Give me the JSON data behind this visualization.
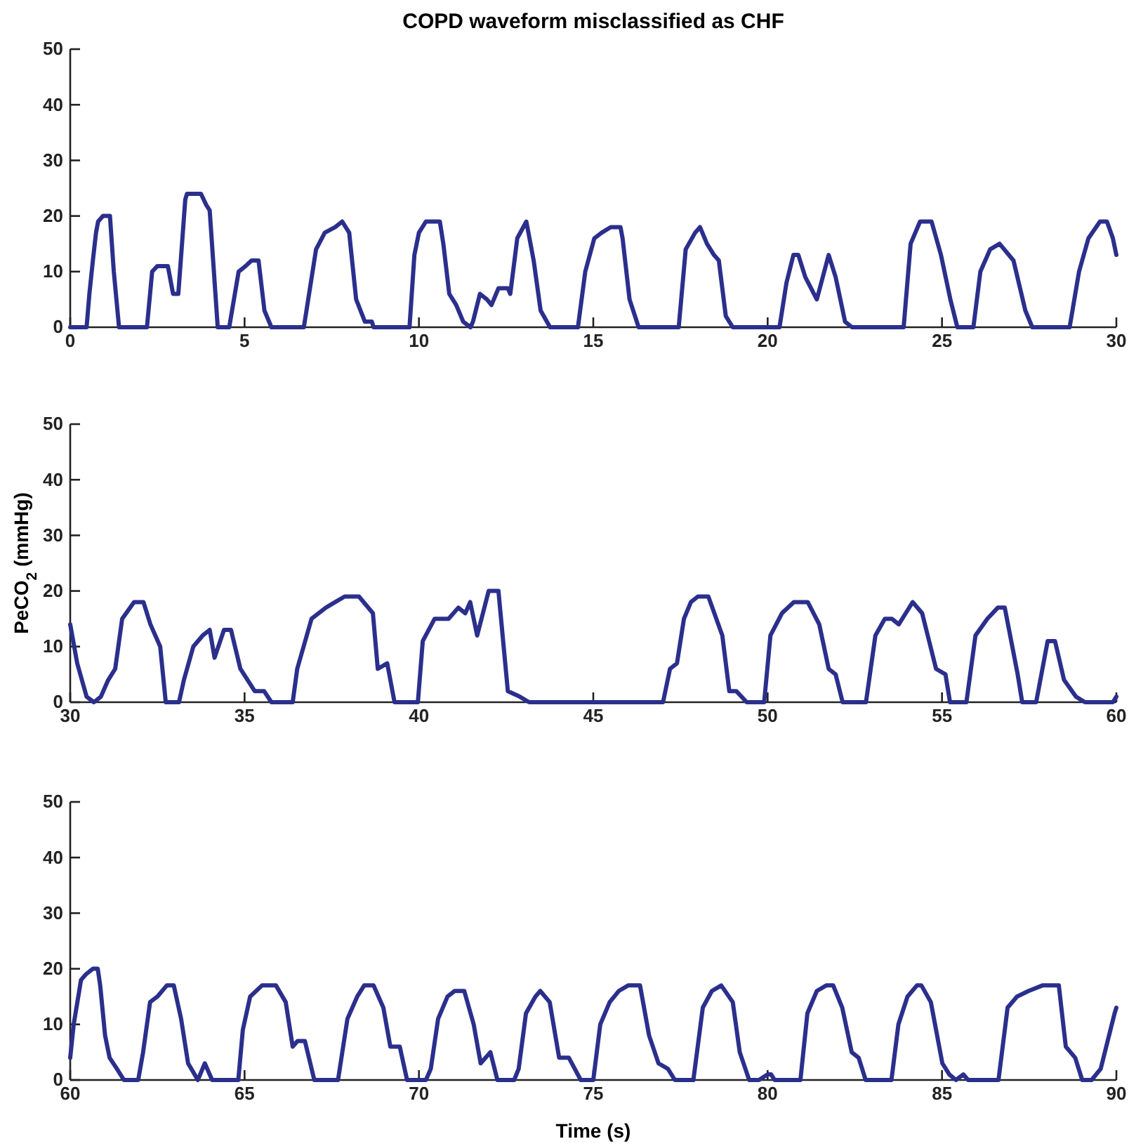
{
  "chart_data": [
    {
      "type": "line",
      "title": "COPD waveform misclassified as CHF",
      "xlim": [
        0,
        30
      ],
      "xticks": [
        0,
        5,
        10,
        15,
        20,
        25,
        30
      ],
      "ylim": [
        0,
        50
      ],
      "yticks": [
        0,
        10,
        20,
        30,
        40,
        50
      ],
      "grid": false,
      "marker": "none",
      "line_style": "solid",
      "series": [
        {
          "color": "#2b2f8c",
          "x": [
            0,
            0.47,
            0.55,
            0.65,
            0.74,
            0.8,
            0.94,
            1.14,
            1.25,
            1.4,
            2.2,
            2.35,
            2.5,
            2.8,
            2.95,
            3.1,
            3.3,
            3.35,
            3.75,
            3.9,
            4.0,
            4.23,
            4.56,
            4.83,
            5.03,
            5.2,
            5.4,
            5.57,
            5.77,
            6.7,
            7.05,
            7.3,
            7.6,
            7.8,
            8.0,
            8.2,
            8.45,
            8.65,
            8.7,
            9.73,
            9.87,
            10.0,
            10.2,
            10.6,
            10.7,
            10.87,
            11.07,
            11.27,
            11.48,
            11.55,
            11.75,
            11.95,
            12.08,
            12.28,
            12.55,
            12.62,
            12.82,
            13.08,
            13.29,
            13.49,
            13.76,
            14.56,
            14.77,
            15.03,
            15.24,
            15.5,
            15.78,
            15.84,
            16.04,
            16.3,
            17.45,
            17.65,
            17.92,
            18.06,
            18.26,
            18.46,
            18.6,
            18.8,
            19.0,
            20.34,
            20.54,
            20.74,
            20.88,
            21.08,
            21.41,
            21.75,
            21.95,
            22.22,
            22.42,
            23.9,
            24.1,
            24.37,
            24.7,
            24.97,
            25.24,
            25.44,
            25.9,
            26.1,
            26.38,
            26.65,
            27.05,
            27.39,
            27.59,
            28.66,
            28.93,
            29.2,
            29.53,
            29.73,
            29.9,
            30.0
          ],
          "values": [
            0,
            0,
            6,
            12,
            17,
            19,
            20,
            20,
            10,
            0,
            0,
            10,
            11,
            11,
            6,
            6,
            23,
            24,
            24,
            22,
            21,
            0,
            0,
            10,
            11,
            12,
            12,
            3,
            0,
            0,
            14,
            17,
            18,
            19,
            17,
            5,
            1,
            1,
            0,
            0,
            13,
            17,
            19,
            19,
            15,
            6,
            4,
            1,
            0,
            1,
            6,
            5,
            4,
            7,
            7,
            6,
            16,
            19,
            12,
            3,
            0,
            0,
            10,
            16,
            17,
            18,
            18,
            16,
            5,
            0,
            0,
            14,
            17,
            18,
            15,
            13,
            12,
            2,
            0,
            0,
            8,
            13,
            13,
            9,
            5,
            13,
            9,
            1,
            0,
            0,
            15,
            19,
            19,
            13,
            5,
            0,
            0,
            10,
            14,
            15,
            12,
            3,
            0,
            0,
            10,
            16,
            19,
            19,
            16,
            13
          ]
        }
      ]
    },
    {
      "type": "line",
      "ylabel": "PeCO$_{2}$ (mmHg)",
      "xlim": [
        30,
        60
      ],
      "xticks": [
        30,
        35,
        40,
        45,
        50,
        55,
        60
      ],
      "ylim": [
        0,
        50
      ],
      "yticks": [
        0,
        10,
        20,
        30,
        40,
        50
      ],
      "grid": false,
      "marker": "none",
      "line_style": "solid",
      "series": [
        {
          "color": "#2b2f8c",
          "x": [
            30,
            30.2,
            30.47,
            30.68,
            30.88,
            31.09,
            31.29,
            31.49,
            31.83,
            32.1,
            32.3,
            32.58,
            32.74,
            33.12,
            33.26,
            33.53,
            33.8,
            34.0,
            34.14,
            34.41,
            34.61,
            34.88,
            35.29,
            35.56,
            35.77,
            36.38,
            36.51,
            36.92,
            37.33,
            37.6,
            37.87,
            38.28,
            38.68,
            38.82,
            39.09,
            39.3,
            39.97,
            40.11,
            40.45,
            40.85,
            41.13,
            41.33,
            41.47,
            41.67,
            42.0,
            42.28,
            42.55,
            42.89,
            43.16,
            47.0,
            47.2,
            47.4,
            47.6,
            47.8,
            48.0,
            48.3,
            48.7,
            48.9,
            49.1,
            49.4,
            49.9,
            50.08,
            50.41,
            50.75,
            51.15,
            51.48,
            51.75,
            51.95,
            52.15,
            52.82,
            53.09,
            53.36,
            53.56,
            53.76,
            53.96,
            54.16,
            54.43,
            54.63,
            54.83,
            55.1,
            55.23,
            55.7,
            55.96,
            56.3,
            56.6,
            56.8,
            57.17,
            57.3,
            57.7,
            58.03,
            58.24,
            58.5,
            58.84,
            59.1,
            59.9,
            60
          ],
          "values": [
            14,
            7,
            1,
            0,
            1,
            4,
            6,
            15,
            18,
            18,
            14,
            10,
            0,
            0,
            4,
            10,
            12,
            13,
            8,
            13,
            13,
            6,
            2,
            2,
            0,
            0,
            6,
            15,
            17,
            18,
            19,
            19,
            16,
            6,
            7,
            0,
            0,
            11,
            15,
            15,
            17,
            16,
            18,
            12,
            20,
            20,
            2,
            1,
            0,
            0,
            6,
            7,
            15,
            18,
            19,
            19,
            12,
            2,
            2,
            0,
            0,
            12,
            16,
            18,
            18,
            14,
            6,
            5,
            0,
            0,
            12,
            15,
            15,
            14,
            16,
            18,
            16,
            11,
            6,
            5,
            0,
            0,
            12,
            15,
            17,
            17,
            5,
            0,
            0,
            11,
            11,
            4,
            1,
            0,
            0,
            1
          ]
        }
      ]
    },
    {
      "type": "line",
      "xlabel": "Time (s)",
      "xlim": [
        60,
        90
      ],
      "xticks": [
        60,
        65,
        70,
        75,
        80,
        85,
        90
      ],
      "ylim": [
        0,
        50
      ],
      "yticks": [
        0,
        10,
        20,
        30,
        40,
        50
      ],
      "grid": false,
      "marker": "none",
      "line_style": "solid",
      "series": [
        {
          "color": "#2b2f8c",
          "x": [
            60,
            60.1,
            60.31,
            60.45,
            60.65,
            60.79,
            60.86,
            61.0,
            61.13,
            61.34,
            61.54,
            61.95,
            62.09,
            62.29,
            62.5,
            62.77,
            62.97,
            63.18,
            63.38,
            63.66,
            63.86,
            64.07,
            64.82,
            64.95,
            65.16,
            65.5,
            65.9,
            66.18,
            66.38,
            66.52,
            66.73,
            67.0,
            67.68,
            67.95,
            68.23,
            68.43,
            68.7,
            68.98,
            69.18,
            69.45,
            69.66,
            70.2,
            70.34,
            70.55,
            70.82,
            71.02,
            71.3,
            71.57,
            71.77,
            72.05,
            72.25,
            72.73,
            72.86,
            73.07,
            73.34,
            73.48,
            73.75,
            74.02,
            74.3,
            74.64,
            75.0,
            75.2,
            75.47,
            75.73,
            76.0,
            76.34,
            76.6,
            76.87,
            77.14,
            77.34,
            77.87,
            78.14,
            78.4,
            78.67,
            79.0,
            79.2,
            79.47,
            79.75,
            80.0,
            80.1,
            80.2,
            80.94,
            81.14,
            81.41,
            81.68,
            81.88,
            82.14,
            82.41,
            82.61,
            82.81,
            83.55,
            83.75,
            84.01,
            84.28,
            84.41,
            84.68,
            85.01,
            85.21,
            85.4,
            85.61,
            85.75,
            86.62,
            86.88,
            87.15,
            87.48,
            87.88,
            88.35,
            88.55,
            88.82,
            89.02,
            89.29,
            89.55,
            89.75,
            89.95,
            90.0
          ],
          "values": [
            4,
            10,
            18,
            19,
            20,
            20,
            17,
            8,
            4,
            2,
            0,
            0,
            5,
            14,
            15,
            17,
            17,
            11,
            3,
            0,
            3,
            0,
            0,
            9,
            15,
            17,
            17,
            14,
            6,
            7,
            7,
            0,
            0,
            11,
            15,
            17,
            17,
            13,
            6,
            6,
            0,
            0,
            2,
            11,
            15,
            16,
            16,
            10,
            3,
            5,
            0,
            0,
            2,
            12,
            15,
            16,
            14,
            4,
            4,
            0,
            0,
            10,
            14,
            16,
            17,
            17,
            8,
            3,
            2,
            0,
            0,
            13,
            16,
            17,
            14,
            5,
            0,
            0,
            1,
            1,
            0,
            0,
            12,
            16,
            17,
            17,
            13,
            5,
            4,
            0,
            0,
            10,
            15,
            17,
            17,
            14,
            3,
            1,
            0,
            1,
            0,
            0,
            13,
            15,
            16,
            17,
            17,
            6,
            4,
            0,
            0,
            2,
            7,
            12,
            13
          ]
        }
      ]
    }
  ]
}
